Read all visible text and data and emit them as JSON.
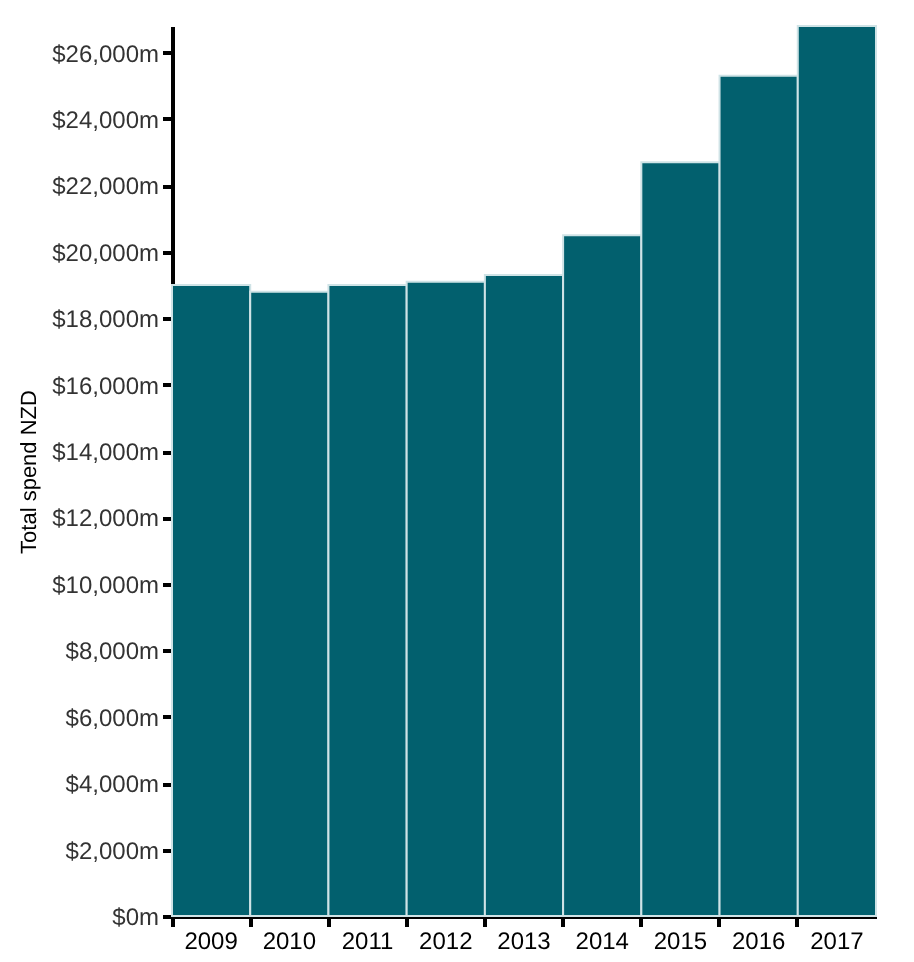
{
  "chart_data": {
    "type": "bar",
    "ylabel": "Total spend NZD",
    "categories": [
      "2009",
      "2010",
      "2011",
      "2012",
      "2013",
      "2014",
      "2015",
      "2016",
      "2017"
    ],
    "values": [
      19000,
      18800,
      19000,
      19100,
      19300,
      20500,
      22700,
      25300,
      26800
    ],
    "color": "#02606e",
    "ylim": [
      0,
      26800
    ],
    "yticks": [
      {
        "value": 0,
        "label": "$0m"
      },
      {
        "value": 2000,
        "label": "$2,000m"
      },
      {
        "value": 4000,
        "label": "$4,000m"
      },
      {
        "value": 6000,
        "label": "$6,000m"
      },
      {
        "value": 8000,
        "label": "$8,000m"
      },
      {
        "value": 10000,
        "label": "$10,000m"
      },
      {
        "value": 12000,
        "label": "$12,000m"
      },
      {
        "value": 14000,
        "label": "$14,000m"
      },
      {
        "value": 16000,
        "label": "$16,000m"
      },
      {
        "value": 18000,
        "label": "$18,000m"
      },
      {
        "value": 20000,
        "label": "$20,000m"
      },
      {
        "value": 22000,
        "label": "$22,000m"
      },
      {
        "value": 24000,
        "label": "$24,000m"
      },
      {
        "value": 26000,
        "label": "$26,000m"
      }
    ],
    "grid": false
  }
}
